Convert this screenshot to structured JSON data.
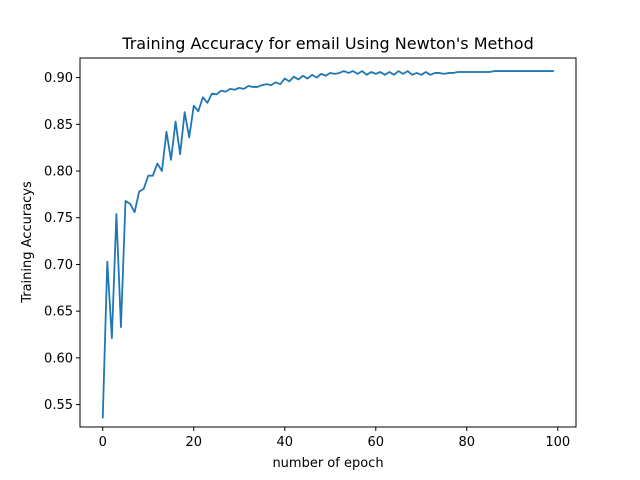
{
  "chart_data": {
    "type": "line",
    "title": "Training Accuracy for email Using Newton's Method",
    "xlabel": "number of epoch",
    "ylabel": "Training Accuracys",
    "xlim": [
      -5,
      104
    ],
    "ylim": [
      0.526,
      0.921
    ],
    "xticks": [
      0,
      20,
      40,
      60,
      80,
      100
    ],
    "yticks": [
      0.55,
      0.6,
      0.65,
      0.7,
      0.75,
      0.8,
      0.85,
      0.9
    ],
    "ytick_labels": [
      "0.55",
      "0.60",
      "0.65",
      "0.70",
      "0.75",
      "0.80",
      "0.85",
      "0.90"
    ],
    "grid": false,
    "line_color": "#1f77b4",
    "x": [
      0,
      1,
      2,
      3,
      4,
      5,
      6,
      7,
      8,
      9,
      10,
      11,
      12,
      13,
      14,
      15,
      16,
      17,
      18,
      19,
      20,
      21,
      22,
      23,
      24,
      25,
      26,
      27,
      28,
      29,
      30,
      31,
      32,
      33,
      34,
      35,
      36,
      37,
      38,
      39,
      40,
      41,
      42,
      43,
      44,
      45,
      46,
      47,
      48,
      49,
      50,
      51,
      52,
      53,
      54,
      55,
      56,
      57,
      58,
      59,
      60,
      61,
      62,
      63,
      64,
      65,
      66,
      67,
      68,
      69,
      70,
      71,
      72,
      73,
      74,
      75,
      76,
      77,
      78,
      79,
      80,
      81,
      82,
      83,
      84,
      85,
      86,
      87,
      88,
      89,
      90,
      91,
      92,
      93,
      94,
      95,
      96,
      97,
      98,
      99
    ],
    "series": [
      {
        "values": [
          0.536,
          0.703,
          0.621,
          0.754,
          0.633,
          0.768,
          0.765,
          0.756,
          0.778,
          0.781,
          0.795,
          0.795,
          0.808,
          0.8,
          0.842,
          0.812,
          0.853,
          0.818,
          0.863,
          0.836,
          0.87,
          0.864,
          0.879,
          0.873,
          0.883,
          0.882,
          0.886,
          0.885,
          0.888,
          0.887,
          0.889,
          0.888,
          0.891,
          0.89,
          0.89,
          0.892,
          0.893,
          0.892,
          0.895,
          0.893,
          0.899,
          0.896,
          0.901,
          0.898,
          0.902,
          0.899,
          0.903,
          0.9,
          0.904,
          0.902,
          0.905,
          0.904,
          0.905,
          0.907,
          0.905,
          0.907,
          0.904,
          0.907,
          0.903,
          0.906,
          0.904,
          0.906,
          0.903,
          0.906,
          0.903,
          0.907,
          0.904,
          0.907,
          0.903,
          0.905,
          0.903,
          0.906,
          0.903,
          0.905,
          0.905,
          0.904,
          0.905,
          0.905,
          0.906,
          0.906,
          0.906,
          0.906,
          0.906,
          0.906,
          0.906,
          0.906,
          0.907,
          0.907,
          0.907,
          0.907,
          0.907,
          0.907,
          0.907,
          0.907,
          0.907,
          0.907,
          0.907,
          0.907,
          0.907,
          0.907
        ]
      }
    ]
  }
}
